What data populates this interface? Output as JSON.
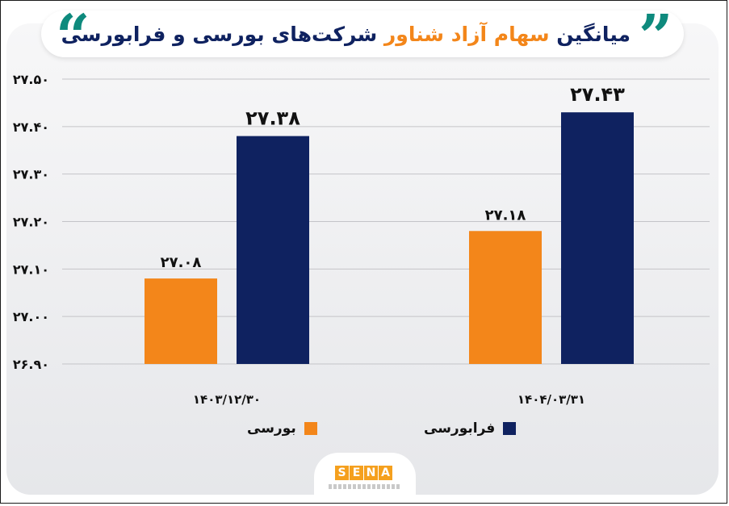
{
  "title": {
    "part1": "میانگین",
    "part2": "سهام آزاد شناور",
    "part3": "شرکت‌های بورسی و فرابورسی"
  },
  "legend": [
    {
      "label": "بورسی",
      "color": "#f3861a"
    },
    {
      "label": "فرابورسی",
      "color": "#0f2260"
    }
  ],
  "logo": {
    "text": "SENA",
    "letters": [
      "S",
      "E",
      "N",
      "A"
    ]
  },
  "chart_data": {
    "type": "bar",
    "categories": [
      "۱۴۰۳/۱۲/۳۰",
      "۱۴۰۴/۰۳/۳۱"
    ],
    "series": [
      {
        "name": "بورسی",
        "color": "#f3861a",
        "values": [
          27.08,
          27.18
        ],
        "labels": [
          "۲۷.۰۸",
          "۲۷.۱۸"
        ]
      },
      {
        "name": "فرابورسی",
        "color": "#0f2260",
        "values": [
          27.38,
          27.43
        ],
        "labels": [
          "۲۷.۳۸",
          "۲۷.۴۳"
        ]
      }
    ],
    "ylim": [
      26.9,
      27.5
    ],
    "yticks": [
      26.9,
      27.0,
      27.1,
      27.2,
      27.3,
      27.4,
      27.5
    ],
    "ytick_labels": [
      "۲۶.۹۰",
      "۲۷.۰۰",
      "۲۷.۱۰",
      "۲۷.۲۰",
      "۲۷.۳۰",
      "۲۷.۴۰",
      "۲۷.۵۰"
    ],
    "grid": true,
    "legend_position": "bottom"
  }
}
